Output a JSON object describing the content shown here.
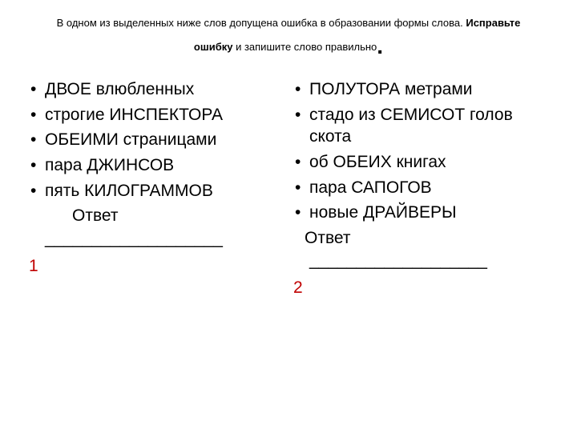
{
  "header": {
    "line1_pre": "В одном из выделенных ниже слов допущена ошибка в образовании формы слова. ",
    "line1_bold": "Исправьте",
    "line2_bold": "ошибку",
    "line2_post": " и запишите слово правильно"
  },
  "left": {
    "items": [
      "ДВОЕ влюбленных",
      "строгие ИНСПЕКТОРА",
      "ОБЕИМИ страницами",
      "пара ДЖИНСОВ",
      "пять КИЛОГРАММОВ"
    ],
    "answer": "Ответ",
    "blank": "___________________",
    "num": "1"
  },
  "right": {
    "items": [
      "ПОЛУТОРА метрами",
      "стадо из СЕМИСОТ голов скота",
      "об ОБЕИХ книгах",
      "пара САПОГОВ",
      "новые ДРАЙВЕРЫ"
    ],
    "answer": "Ответ",
    "blank": "___________________",
    "num": "2"
  },
  "colors": {
    "text": "#000000",
    "accent": "#c00000",
    "background": "#ffffff"
  },
  "typography": {
    "header_fontsize": 13,
    "body_fontsize": 21,
    "font_family": "Arial"
  }
}
